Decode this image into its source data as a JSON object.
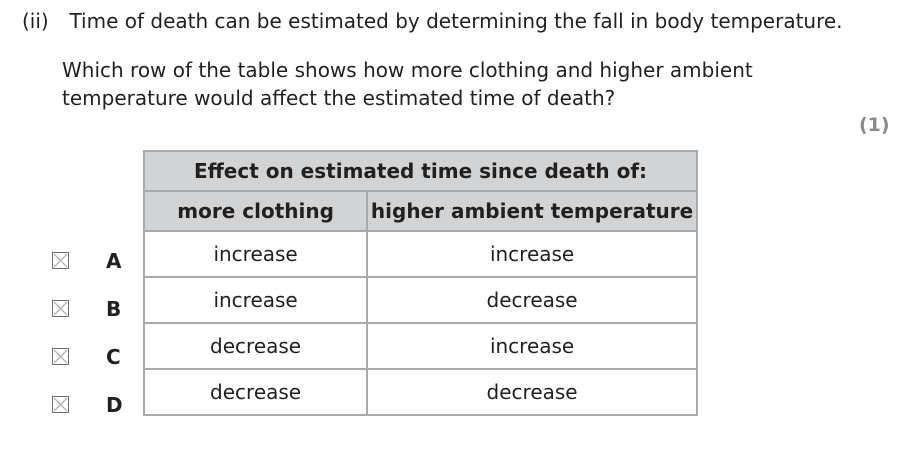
{
  "question": {
    "number": "(ii)",
    "line1": "Time of death can be estimated by determining the fall in body temperature.",
    "line2": "Which row of the table shows how more clothing and higher ambient",
    "line3": "temperature would affect the estimated time of death?",
    "marks": "(1)"
  },
  "table": {
    "header": "Effect on estimated time since death of:",
    "columns": [
      "more clothing",
      "higher ambient temperature"
    ],
    "rows": [
      {
        "letter": "A",
        "clothing": "increase",
        "temperature": "increase"
      },
      {
        "letter": "B",
        "clothing": "increase",
        "temperature": "decrease"
      },
      {
        "letter": "C",
        "clothing": "decrease",
        "temperature": "increase"
      },
      {
        "letter": "D",
        "clothing": "decrease",
        "temperature": "decrease"
      }
    ]
  }
}
